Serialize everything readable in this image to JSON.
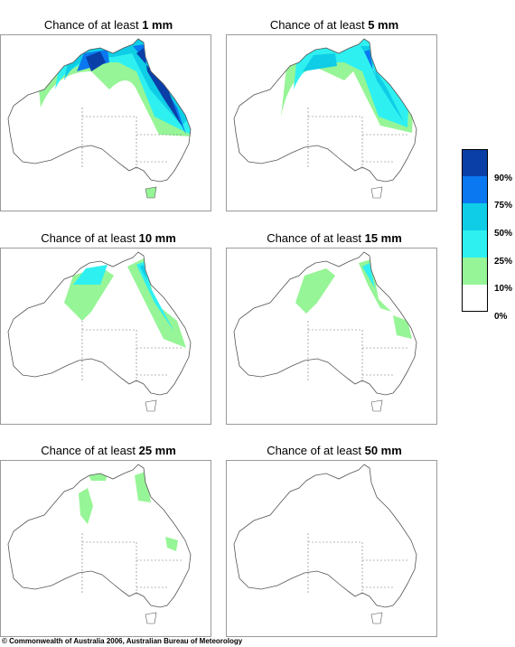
{
  "panels": [
    {
      "prefix": "Chance of at least ",
      "amount": "1 mm"
    },
    {
      "prefix": "Chance of at least ",
      "amount": "5 mm"
    },
    {
      "prefix": "Chance of at least ",
      "amount": "10 mm"
    },
    {
      "prefix": "Chance of at least ",
      "amount": "15 mm"
    },
    {
      "prefix": "Chance of at least ",
      "amount": "25 mm"
    },
    {
      "prefix": "Chance of at least ",
      "amount": "50 mm"
    }
  ],
  "legend": {
    "bands": [
      {
        "label": "90%",
        "color": "#0a3fa8"
      },
      {
        "label": "75%",
        "color": "#0a78f0"
      },
      {
        "label": "50%",
        "color": "#0fcde6"
      },
      {
        "label": "25%",
        "color": "#2ff0f0"
      },
      {
        "label": "10%",
        "color": "#96f596"
      },
      {
        "label": "0%",
        "color": "#ffffff"
      }
    ]
  },
  "footer": "© Commonwealth of Australia 2006, Australian Bureau of Meteorology"
}
